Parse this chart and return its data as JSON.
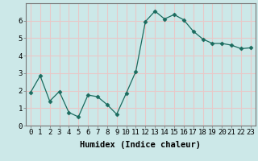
{
  "x": [
    0,
    1,
    2,
    3,
    4,
    5,
    6,
    7,
    8,
    9,
    10,
    11,
    12,
    13,
    14,
    15,
    16,
    17,
    18,
    19,
    20,
    21,
    22,
    23
  ],
  "y": [
    1.9,
    2.85,
    1.4,
    1.95,
    0.75,
    0.5,
    1.75,
    1.65,
    1.2,
    0.65,
    1.85,
    3.1,
    5.95,
    6.55,
    6.1,
    6.35,
    6.05,
    5.4,
    4.95,
    4.7,
    4.7,
    4.6,
    4.4,
    4.45
  ],
  "line_color": "#1a6b5e",
  "marker": "D",
  "marker_size": 2.5,
  "bg_color": "#cce8e8",
  "grid_color": "#e8c8c8",
  "xlabel": "Humidex (Indice chaleur)",
  "xlim": [
    -0.5,
    23.5
  ],
  "ylim": [
    0,
    7
  ],
  "yticks": [
    0,
    1,
    2,
    3,
    4,
    5,
    6
  ],
  "xtick_labels": [
    "0",
    "1",
    "2",
    "3",
    "4",
    "5",
    "6",
    "7",
    "8",
    "9",
    "10",
    "11",
    "12",
    "13",
    "14",
    "15",
    "16",
    "17",
    "18",
    "19",
    "20",
    "21",
    "22",
    "23"
  ],
  "xlabel_fontsize": 7.5,
  "tick_fontsize": 6.5
}
